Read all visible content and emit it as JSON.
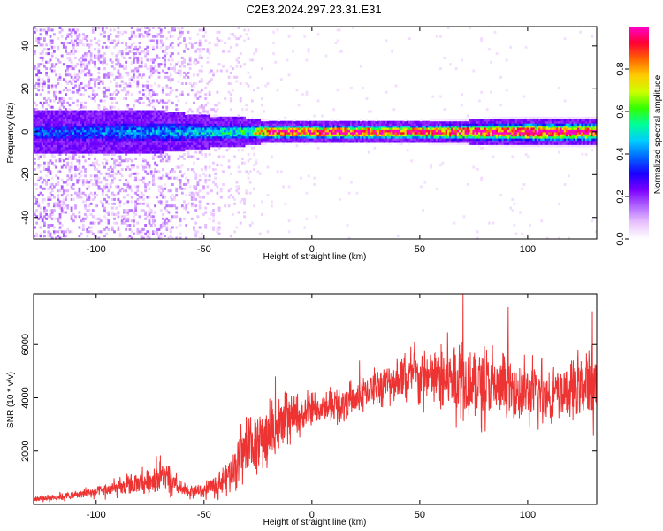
{
  "title": "C2E3.2024.297.23.31.E31",
  "chart_data": [
    {
      "type": "heatmap",
      "title": "C2E3.2024.297.23.31.E31",
      "xlabel": "Height of straight line (km)",
      "ylabel": "Frequency (Hz)",
      "xlim": [
        -129,
        132
      ],
      "ylim": [
        -50,
        49
      ],
      "xticks": [
        -100,
        -50,
        0,
        50,
        100
      ],
      "yticks": [
        -40,
        -20,
        0,
        20,
        40
      ],
      "colorbar": {
        "label": "Normalized spectral amplitude",
        "range": [
          0.0,
          1.0
        ],
        "ticks": [
          0.0,
          0.2,
          0.4,
          0.6,
          0.8
        ],
        "colors": [
          "#ffffff",
          "#e9c3ff",
          "#b266ff",
          "#7a00ff",
          "#1a00ff",
          "#0066ff",
          "#00ccff",
          "#00ff99",
          "#33ff00",
          "#ccff00",
          "#ffcc00",
          "#ff6600",
          "#ff0033",
          "#ff00cc"
        ]
      },
      "band_profile": [
        {
          "x": -129,
          "half_width_hz": 6,
          "peak": 0.35,
          "scatter": 0.9
        },
        {
          "x": -100,
          "half_width_hz": 6,
          "peak": 0.38,
          "scatter": 0.7
        },
        {
          "x": -70,
          "half_width_hz": 6,
          "peak": 0.42,
          "scatter": 0.75
        },
        {
          "x": -55,
          "half_width_hz": 5,
          "peak": 0.45,
          "scatter": 0.5
        },
        {
          "x": -30,
          "half_width_hz": 4,
          "peak": 0.55,
          "scatter": 0.2
        },
        {
          "x": -20,
          "half_width_hz": 3,
          "peak": 0.95,
          "scatter": 0.05
        },
        {
          "x": 0,
          "half_width_hz": 3,
          "peak": 0.97,
          "scatter": 0.03
        },
        {
          "x": 50,
          "half_width_hz": 3,
          "peak": 0.97,
          "scatter": 0.03
        },
        {
          "x": 100,
          "half_width_hz": 4,
          "peak": 0.96,
          "scatter": 0.03
        },
        {
          "x": 132,
          "half_width_hz": 4,
          "peak": 0.95,
          "scatter": 0.03
        }
      ]
    },
    {
      "type": "line",
      "xlabel": "Height of straight line (km)",
      "ylabel": "SNR (10 * v/v)",
      "xlim": [
        -129,
        132
      ],
      "ylim": [
        0,
        7900
      ],
      "xticks": [
        -100,
        -50,
        0,
        50,
        100
      ],
      "yticks": [
        2000,
        4000,
        6000
      ],
      "color": "#ee3333",
      "series": [
        {
          "envelope": [
            {
              "x": -129,
              "mean": 200,
              "spread": 180
            },
            {
              "x": -110,
              "mean": 350,
              "spread": 250
            },
            {
              "x": -90,
              "mean": 600,
              "spread": 500
            },
            {
              "x": -75,
              "mean": 900,
              "spread": 900
            },
            {
              "x": -70,
              "mean": 1100,
              "spread": 1000
            },
            {
              "x": -60,
              "mean": 500,
              "spread": 400
            },
            {
              "x": -50,
              "mean": 500,
              "spread": 400
            },
            {
              "x": -40,
              "mean": 1000,
              "spread": 900
            },
            {
              "x": -30,
              "mean": 2200,
              "spread": 1800
            },
            {
              "x": -20,
              "mean": 2600,
              "spread": 1900
            },
            {
              "x": -10,
              "mean": 3200,
              "spread": 1300
            },
            {
              "x": 0,
              "mean": 3500,
              "spread": 1000
            },
            {
              "x": 10,
              "mean": 3700,
              "spread": 900
            },
            {
              "x": 20,
              "mean": 3900,
              "spread": 1000
            },
            {
              "x": 30,
              "mean": 4500,
              "spread": 1100
            },
            {
              "x": 40,
              "mean": 4700,
              "spread": 1300
            },
            {
              "x": 50,
              "mean": 4800,
              "spread": 1600
            },
            {
              "x": 60,
              "mean": 4700,
              "spread": 2000
            },
            {
              "x": 70,
              "mean": 4800,
              "spread": 2400
            },
            {
              "x": 80,
              "mean": 4500,
              "spread": 2000
            },
            {
              "x": 90,
              "mean": 4300,
              "spread": 2000
            },
            {
              "x": 100,
              "mean": 4200,
              "spread": 1800
            },
            {
              "x": 110,
              "mean": 4100,
              "spread": 1600
            },
            {
              "x": 120,
              "mean": 4200,
              "spread": 1600
            },
            {
              "x": 132,
              "mean": 4500,
              "spread": 2200
            }
          ],
          "peaks": [
            {
              "x": 70,
              "y": 7900
            },
            {
              "x": 91,
              "y": 7400
            },
            {
              "x": 130,
              "y": 7250
            },
            {
              "x": -17,
              "y": 4800
            },
            {
              "x": 22,
              "y": 5400
            }
          ]
        }
      ]
    }
  ]
}
